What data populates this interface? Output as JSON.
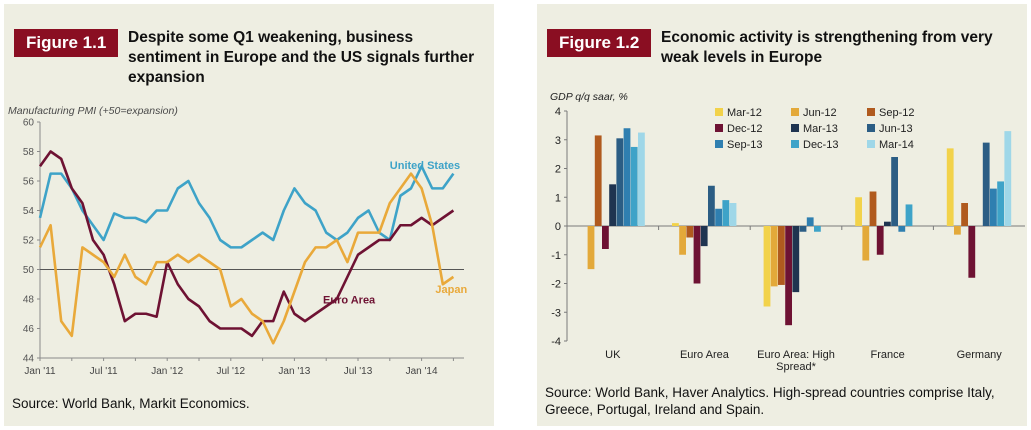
{
  "figure1": {
    "label": "Figure 1.1",
    "title": "Despite some Q1 weakening, business sentiment in Europe and the US signals further expansion",
    "source": "Source: World Bank, Markit Economics."
  },
  "figure2": {
    "label": "Figure 1.2",
    "title": "Economic activity is strengthening from very weak levels in Europe",
    "source": "Source: World Bank, Haver Analytics. High-spread countries comprise Italy, Greece, Portugal, Ireland and Spain."
  },
  "chart_data": [
    {
      "type": "line",
      "ylabel": "Manufacturing PMI (+50=expansion)",
      "ylim": [
        44,
        60
      ],
      "yticks": [
        44,
        46,
        48,
        50,
        52,
        54,
        56,
        58,
        60
      ],
      "x_tick_labels": [
        "Jan '11",
        "Jul '11",
        "Jan '12",
        "Jul '12",
        "Jan '13",
        "Jul '13",
        "Jan '14"
      ],
      "x_tick_months": [
        0,
        6,
        12,
        18,
        24,
        30,
        36
      ],
      "x_range_months": [
        0,
        40
      ],
      "reference_line": 50,
      "series": [
        {
          "name": "United States",
          "color": "#3ea3c8",
          "values": [
            53.5,
            56.5,
            56.5,
            55.5,
            54.0,
            53.0,
            52.0,
            53.8,
            53.5,
            53.5,
            53.2,
            54.0,
            54.0,
            55.5,
            56.0,
            54.5,
            53.5,
            52.0,
            51.5,
            51.5,
            52.0,
            52.5,
            52.0,
            54.0,
            55.5,
            54.5,
            54.0,
            52.5,
            52.0,
            52.5,
            53.5,
            54.0,
            52.5,
            52.0,
            55.0,
            55.5,
            57.0,
            55.5,
            55.5,
            56.5
          ]
        },
        {
          "name": "Euro Area",
          "color": "#6e1233",
          "values": [
            57.0,
            58.0,
            57.5,
            55.5,
            54.5,
            52.0,
            51.0,
            49.0,
            46.5,
            47.0,
            47.0,
            46.8,
            50.5,
            49.0,
            48.0,
            47.5,
            46.5,
            46.0,
            46.0,
            46.0,
            45.5,
            46.5,
            46.5,
            48.5,
            47.0,
            46.5,
            47.0,
            47.5,
            48.0,
            49.5,
            51.0,
            51.5,
            52.0,
            52.0,
            53.0,
            53.0,
            53.5,
            53.0,
            53.5,
            54.0
          ]
        },
        {
          "name": "Japan",
          "color": "#e9a93a",
          "values": [
            51.5,
            53.0,
            46.5,
            45.5,
            51.5,
            51.0,
            50.5,
            49.5,
            51.0,
            49.5,
            49.0,
            50.5,
            50.5,
            51.0,
            50.5,
            51.0,
            50.5,
            50.0,
            47.5,
            48.0,
            47.0,
            46.5,
            45.0,
            46.5,
            48.5,
            50.5,
            51.5,
            51.5,
            52.0,
            50.5,
            52.5,
            52.5,
            52.5,
            54.5,
            55.5,
            56.5,
            55.5,
            53.0,
            49.0,
            49.5
          ]
        }
      ]
    },
    {
      "type": "bar",
      "ylabel": "GDP q/q saar, %",
      "ylim": [
        -4,
        4
      ],
      "yticks": [
        -4,
        -3,
        -2,
        -1,
        0,
        1,
        2,
        3,
        4
      ],
      "categories": [
        "UK",
        "Euro Area",
        "Euro Area: High Spread*",
        "France",
        "Germany"
      ],
      "legend_placement": "top-center",
      "series": [
        {
          "name": "Mar-12",
          "color": "#f2d24a",
          "values": [
            0.0,
            0.1,
            -2.8,
            1.0,
            2.7
          ]
        },
        {
          "name": "Jun-12",
          "color": "#e3a93a",
          "values": [
            -1.5,
            -1.0,
            -2.1,
            -1.2,
            -0.3
          ]
        },
        {
          "name": "Sep-12",
          "color": "#b05a1e",
          "values": [
            3.15,
            -0.4,
            -2.05,
            1.2,
            0.8
          ]
        },
        {
          "name": "Dec-12",
          "color": "#6e1233",
          "values": [
            -0.8,
            -2.0,
            -3.45,
            -1.0,
            -1.8
          ]
        },
        {
          "name": "Mar-13",
          "color": "#1f3450",
          "values": [
            1.45,
            -0.7,
            -2.3,
            0.15,
            0.0
          ]
        },
        {
          "name": "Jun-13",
          "color": "#2b5d84",
          "values": [
            3.05,
            1.4,
            -0.2,
            2.4,
            2.9
          ]
        },
        {
          "name": "Sep-13",
          "color": "#2f7fb0",
          "values": [
            3.4,
            0.6,
            0.3,
            -0.2,
            1.3
          ]
        },
        {
          "name": "Dec-13",
          "color": "#3ea3c8",
          "values": [
            2.75,
            0.9,
            -0.2,
            0.75,
            1.55
          ]
        },
        {
          "name": "Mar-14",
          "color": "#9fd7e8",
          "values": [
            3.25,
            0.8,
            0.0,
            0.0,
            3.3
          ]
        }
      ]
    }
  ]
}
